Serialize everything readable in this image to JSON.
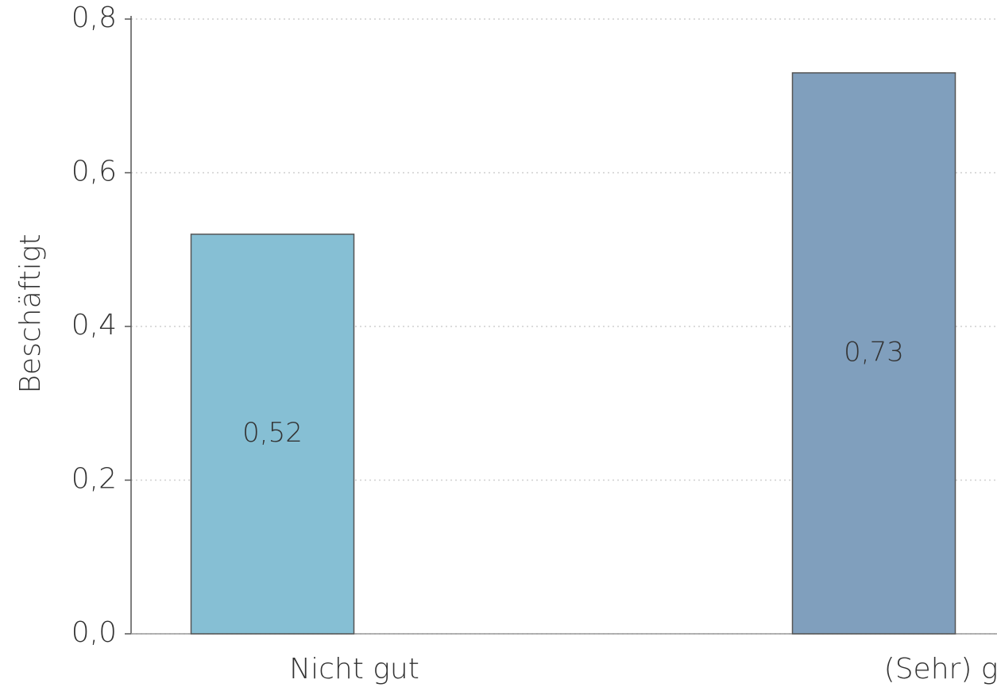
{
  "chart_data": {
    "type": "bar",
    "y_label": "Beschäftigt",
    "categories": [
      "Nicht gut",
      "(Sehr) gut"
    ],
    "values": [
      0.52,
      0.73
    ],
    "value_labels": [
      "0,52",
      "0,73"
    ],
    "colors": [
      "#86bfd4",
      "#809fbd"
    ],
    "ylim": [
      0,
      0.8
    ],
    "yticks": [
      {
        "value": 0,
        "label": "0,0"
      },
      {
        "value": 0.2,
        "label": "0,2"
      },
      {
        "value": 0.4,
        "label": "0,4"
      },
      {
        "value": 0.6,
        "label": "0,6"
      },
      {
        "value": 0.8,
        "label": "0,8"
      }
    ],
    "grid": true
  }
}
